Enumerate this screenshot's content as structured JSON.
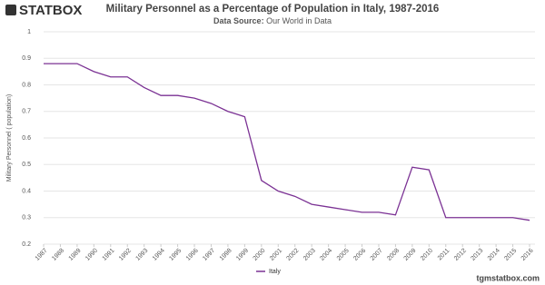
{
  "logo": "STATBOX",
  "footer": "tgmstatbox.com",
  "source_label": "Data Source:",
  "source": "Our World in Data",
  "chart_data": {
    "type": "line",
    "title": "Military Personnel as a Percentage of Population in Italy, 1987-2016",
    "y_label": "Military Personnel ( population)",
    "categories": [
      "1987",
      "1988",
      "1989",
      "1990",
      "1991",
      "1992",
      "1993",
      "1994",
      "1995",
      "1996",
      "1997",
      "1998",
      "1999",
      "2000",
      "2001",
      "2002",
      "2003",
      "2004",
      "2005",
      "2006",
      "2007",
      "2008",
      "2009",
      "2010",
      "2011",
      "2012",
      "2013",
      "2014",
      "2015",
      "2016"
    ],
    "series": [
      {
        "name": "Italy",
        "color": "#7b3294",
        "values": [
          0.88,
          0.88,
          0.88,
          0.85,
          0.83,
          0.83,
          0.79,
          0.76,
          0.76,
          0.75,
          0.73,
          0.7,
          0.68,
          0.44,
          0.4,
          0.38,
          0.35,
          0.34,
          0.33,
          0.32,
          0.32,
          0.31,
          0.49,
          0.48,
          0.3,
          0.3,
          0.3,
          0.3,
          0.3,
          0.29
        ]
      }
    ],
    "ylim": [
      0.2,
      1
    ],
    "yticks": [
      0.2,
      0.3,
      0.4,
      0.5,
      0.6,
      0.7,
      0.8,
      0.9,
      1
    ],
    "grid": true,
    "legend": "bottom"
  }
}
